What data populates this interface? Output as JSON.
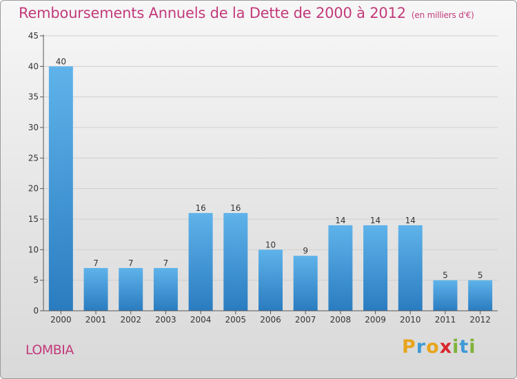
{
  "header": {
    "title": "Remboursements Annuels de la Dette de 2000 à 2012",
    "subtitle": "(en milliers d'€)"
  },
  "footer": {
    "commune": "LOMBIA",
    "logo_text": "Proxiti",
    "logo_letters": [
      {
        "ch": "P",
        "color": "#e8a51c"
      },
      {
        "ch": "r",
        "color": "#3f9ad6"
      },
      {
        "ch": "o",
        "color": "#e8a51c"
      },
      {
        "ch": "x",
        "color": "#d9262e"
      },
      {
        "ch": "i",
        "color": "#7fb23a"
      },
      {
        "ch": "t",
        "color": "#3f9ad6"
      },
      {
        "ch": "i",
        "color": "#7fb23a"
      }
    ]
  },
  "colors": {
    "title": "#c23a7a",
    "bar_top": "#5fb3ea",
    "bar_bottom": "#2a7cc0",
    "axis": "#555555",
    "grid": "#cfcfcf"
  },
  "chart_data": {
    "type": "bar",
    "categories": [
      "2000",
      "2001",
      "2002",
      "2003",
      "2004",
      "2005",
      "2006",
      "2007",
      "2008",
      "2009",
      "2010",
      "2011",
      "2012"
    ],
    "values": [
      40,
      7,
      7,
      7,
      16,
      16,
      10,
      9,
      14,
      14,
      14,
      5,
      5
    ],
    "ylim": [
      0,
      45
    ],
    "yticks": [
      0,
      5,
      10,
      15,
      20,
      25,
      30,
      35,
      40,
      45
    ],
    "grid": true,
    "data_labels": true
  }
}
